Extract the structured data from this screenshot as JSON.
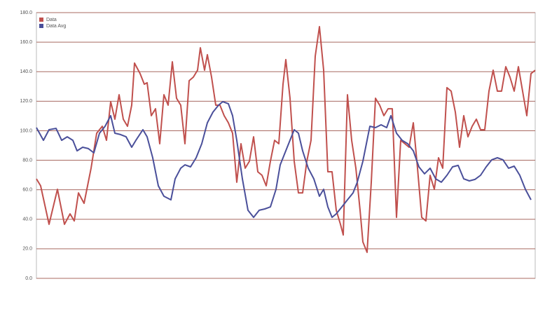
{
  "chart_data": {
    "type": "line",
    "xlim": [
      0,
      712
    ],
    "ylim": [
      0,
      180
    ],
    "yticks": [
      {
        "value": 0,
        "label": "0.0"
      },
      {
        "value": 20,
        "label": "20.0"
      },
      {
        "value": 40,
        "label": "40.0"
      },
      {
        "value": 60,
        "label": "60.0"
      },
      {
        "value": 80,
        "label": "80.0"
      },
      {
        "value": 100,
        "label": "100.0"
      },
      {
        "value": 120,
        "label": "120.0"
      },
      {
        "value": 140,
        "label": "140.0"
      },
      {
        "value": 160,
        "label": "160.0"
      },
      {
        "value": 180,
        "label": "180.0"
      }
    ],
    "grid": true,
    "legend": "top-left",
    "series": [
      {
        "name": "Data",
        "color": "#c0504d",
        "x": [
          0,
          6,
          18,
          30,
          40,
          48,
          54,
          60,
          68,
          78,
          86,
          94,
          100,
          106,
          112,
          118,
          124,
          130,
          136,
          140,
          148,
          154,
          158,
          164,
          170,
          176,
          182,
          188,
          194,
          200,
          206,
          212,
          218,
          224,
          230,
          234,
          240,
          244,
          250,
          256,
          262,
          268,
          274,
          280,
          286,
          292,
          298,
          304,
          310,
          316,
          322,
          328,
          334,
          340,
          346,
          352,
          356,
          362,
          368,
          374,
          380,
          386,
          392,
          398,
          404,
          410,
          416,
          422,
          428,
          434,
          438,
          444,
          450,
          456,
          462,
          466,
          472,
          478,
          484,
          490,
          496,
          502,
          508,
          514,
          520,
          526,
          532,
          538,
          544,
          550,
          556,
          562,
          568,
          574,
          580,
          586,
          592,
          598,
          604,
          610,
          616,
          622,
          628,
          634,
          640,
          646,
          652,
          658,
          664,
          670,
          676,
          682,
          688,
          694,
          700,
          706,
          712
        ],
        "values": [
          67.4,
          62.7,
          36.6,
          60.3,
          36.6,
          43.7,
          38.9,
          57.9,
          50.8,
          74.6,
          98.3,
          103.0,
          93.5,
          119.7,
          107.8,
          124.4,
          107.8,
          103.0,
          117.3,
          145.8,
          138.7,
          131.5,
          132.5,
          110.2,
          114.9,
          91.2,
          124.4,
          117.3,
          146.7,
          122.0,
          117.3,
          91.2,
          133.9,
          136.3,
          141.0,
          156.2,
          141.0,
          151.5,
          136.3,
          117.3,
          117.3,
          110.2,
          105.4,
          98.3,
          65.1,
          91.2,
          74.6,
          79.3,
          95.9,
          72.2,
          69.8,
          62.7,
          79.3,
          93.5,
          91.2,
          131.5,
          148.2,
          122.0,
          79.3,
          57.9,
          57.9,
          79.3,
          93.5,
          150.5,
          170.5,
          141.0,
          72.2,
          72.2,
          46.1,
          36.6,
          29.4,
          124.4,
          93.5,
          74.6,
          46.1,
          24.7,
          17.6,
          65.1,
          122.0,
          117.3,
          110.2,
          114.9,
          114.9,
          41.3,
          93.5,
          91.2,
          88.8,
          105.4,
          74.6,
          41.3,
          38.9,
          69.8,
          60.3,
          81.7,
          74.6,
          129.2,
          126.8,
          112.6,
          88.8,
          110.2,
          95.9,
          103.0,
          107.8,
          100.7,
          100.7,
          126.8,
          141.0,
          126.8,
          126.8,
          143.4,
          136.3,
          126.8,
          143.4,
          126.8,
          110.2,
          138.7,
          141.0
        ]
      },
      {
        "name": "Data Avg",
        "color": "#4a4f9a",
        "x": [
          0,
          10,
          18,
          28,
          36,
          44,
          52,
          58,
          66,
          74,
          82,
          90,
          98,
          106,
          112,
          120,
          128,
          136,
          142,
          152,
          158,
          166,
          174,
          182,
          192,
          198,
          206,
          212,
          220,
          228,
          236,
          244,
          252,
          260,
          266,
          274,
          280,
          286,
          294,
          302,
          310,
          318,
          326,
          334,
          342,
          348,
          358,
          368,
          374,
          380,
          388,
          396,
          404,
          410,
          416,
          422,
          428,
          436,
          444,
          452,
          458,
          466,
          476,
          484,
          492,
          500,
          506,
          514,
          522,
          530,
          538,
          546,
          554,
          562,
          570,
          578,
          586,
          594,
          602,
          610,
          618,
          626,
          634,
          642,
          650,
          658,
          666,
          674,
          682,
          690,
          698,
          706
        ],
        "values": [
          102.1,
          93.5,
          100.7,
          101.6,
          93.5,
          95.9,
          93.5,
          86.4,
          88.8,
          87.9,
          85.0,
          98.3,
          103.0,
          110.2,
          98.3,
          97.4,
          95.9,
          88.8,
          93.5,
          100.7,
          95.9,
          81.7,
          62.7,
          55.6,
          53.2,
          67.4,
          74.6,
          76.9,
          75.5,
          81.7,
          91.2,
          105.4,
          112.6,
          117.3,
          119.7,
          118.3,
          110.2,
          93.5,
          67.4,
          46.1,
          41.3,
          46.1,
          47.0,
          48.4,
          60.3,
          76.9,
          88.8,
          100.7,
          98.3,
          86.4,
          74.6,
          67.4,
          55.6,
          60.3,
          48.4,
          41.3,
          43.7,
          48.4,
          53.2,
          57.9,
          65.1,
          79.3,
          103.0,
          102.1,
          104.0,
          102.1,
          110.2,
          98.3,
          93.5,
          91.2,
          86.4,
          75.5,
          70.8,
          74.6,
          67.4,
          65.1,
          69.8,
          75.5,
          76.5,
          67.4,
          66.0,
          67.0,
          69.8,
          75.5,
          80.3,
          81.7,
          80.3,
          74.6,
          76.0,
          69.8,
          60.3,
          53.2
        ]
      }
    ]
  }
}
